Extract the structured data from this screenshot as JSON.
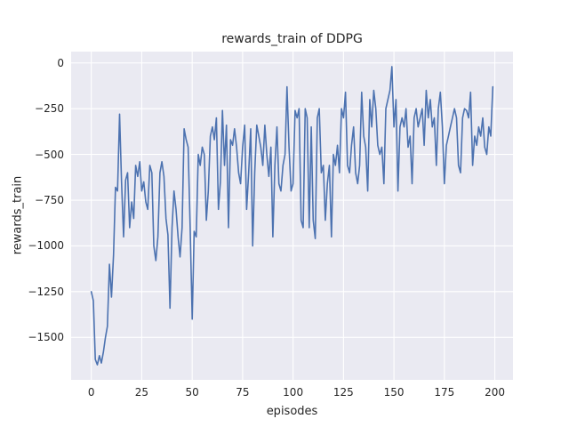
{
  "chart_data": {
    "type": "line",
    "title": "rewards_train of DDPG",
    "xlabel": "episodes",
    "ylabel": "rewards_train",
    "x_start": 0,
    "x_step": 1,
    "values": [
      -1250,
      -1300,
      -1620,
      -1650,
      -1600,
      -1640,
      -1580,
      -1500,
      -1440,
      -1100,
      -1280,
      -1050,
      -680,
      -700,
      -280,
      -650,
      -950,
      -640,
      -600,
      -900,
      -760,
      -850,
      -560,
      -620,
      -540,
      -700,
      -650,
      -760,
      -800,
      -560,
      -600,
      -1000,
      -1080,
      -950,
      -600,
      -540,
      -620,
      -850,
      -940,
      -1340,
      -900,
      -700,
      -800,
      -950,
      -1060,
      -900,
      -360,
      -420,
      -460,
      -900,
      -1400,
      -920,
      -950,
      -500,
      -560,
      -460,
      -500,
      -860,
      -700,
      -400,
      -350,
      -420,
      -300,
      -800,
      -650,
      -260,
      -560,
      -340,
      -900,
      -420,
      -450,
      -360,
      -460,
      -600,
      -660,
      -460,
      -340,
      -800,
      -600,
      -360,
      -1000,
      -600,
      -340,
      -400,
      -460,
      -560,
      -340,
      -500,
      -620,
      -460,
      -950,
      -560,
      -350,
      -660,
      -700,
      -560,
      -500,
      -130,
      -460,
      -700,
      -660,
      -260,
      -300,
      -250,
      -860,
      -900,
      -250,
      -300,
      -900,
      -350,
      -860,
      -960,
      -300,
      -250,
      -600,
      -560,
      -860,
      -660,
      -560,
      -950,
      -500,
      -560,
      -450,
      -600,
      -250,
      -300,
      -160,
      -560,
      -600,
      -450,
      -350,
      -600,
      -660,
      -560,
      -160,
      -400,
      -460,
      -700,
      -200,
      -350,
      -150,
      -250,
      -450,
      -500,
      -460,
      -660,
      -250,
      -200,
      -150,
      -20,
      -350,
      -200,
      -700,
      -350,
      -300,
      -350,
      -250,
      -460,
      -400,
      -660,
      -300,
      -250,
      -350,
      -300,
      -250,
      -450,
      -150,
      -300,
      -200,
      -350,
      -300,
      -560,
      -250,
      -160,
      -350,
      -660,
      -450,
      -400,
      -350,
      -300,
      -250,
      -300,
      -560,
      -600,
      -300,
      -250,
      -260,
      -300,
      -160,
      -560,
      -400,
      -450,
      -350,
      -400,
      -300,
      -460,
      -500,
      -350,
      -400,
      -130
    ],
    "xlim": [
      -10,
      209
    ],
    "ylim": [
      -1732,
      62
    ],
    "xticks": {
      "values": [
        0,
        25,
        50,
        75,
        100,
        125,
        150,
        175,
        200
      ],
      "labels": [
        "0",
        "25",
        "50",
        "75",
        "100",
        "125",
        "150",
        "175",
        "200"
      ]
    },
    "yticks": {
      "values": [
        0,
        -250,
        -500,
        -750,
        -1000,
        -1250,
        -1500
      ],
      "labels": [
        "0",
        "−250",
        "−500",
        "−750",
        "−1000",
        "−1250",
        "−1500"
      ]
    },
    "grid": true,
    "legend": "none",
    "style": {
      "line_color": "#4c72b0",
      "line_width": 1.6,
      "plot_bg": "#eaeaf2",
      "grid_color": "#ffffff",
      "text_color": "#262626",
      "figure_bg": "#ffffff"
    }
  }
}
